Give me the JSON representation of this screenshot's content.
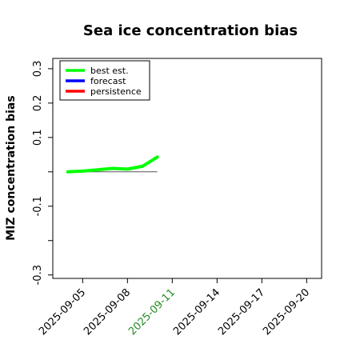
{
  "chart_data": {
    "type": "line",
    "title": "Sea ice concentration bias",
    "xlabel": "",
    "ylabel": "MIZ concentration bias",
    "ylim": [
      -0.31,
      0.33
    ],
    "xlim": [
      "2025-09-03",
      "2025-09-21"
    ],
    "y_ticks": [
      -0.3,
      -0.2,
      -0.1,
      0.0,
      0.1,
      0.2,
      0.3
    ],
    "y_tick_labels": [
      "-0.3",
      "",
      "-0.1",
      "",
      "0.1",
      "0.2",
      "0.3"
    ],
    "x_ticks": [
      "2025-09-05",
      "2025-09-08",
      "2025-09-11",
      "2025-09-14",
      "2025-09-17",
      "2025-09-20"
    ],
    "highlight_tick": "2025-09-11",
    "highlight_color": "#228b22",
    "zero_line": {
      "x_start": "2025-09-04",
      "x_end": "2025-09-10",
      "color": "#555555"
    },
    "legend": {
      "placement": "top-left"
    },
    "series": [
      {
        "name": "best est.",
        "color": "#00ff00",
        "x": [
          "2025-09-04",
          "2025-09-05",
          "2025-09-06",
          "2025-09-07",
          "2025-09-08",
          "2025-09-09",
          "2025-09-10"
        ],
        "y": [
          0.0,
          0.002,
          0.006,
          0.01,
          0.008,
          0.016,
          0.043
        ]
      },
      {
        "name": "forecast",
        "color": "#0000ff",
        "x": [],
        "y": []
      },
      {
        "name": "persistence",
        "color": "#ff0000",
        "x": [],
        "y": []
      }
    ]
  }
}
